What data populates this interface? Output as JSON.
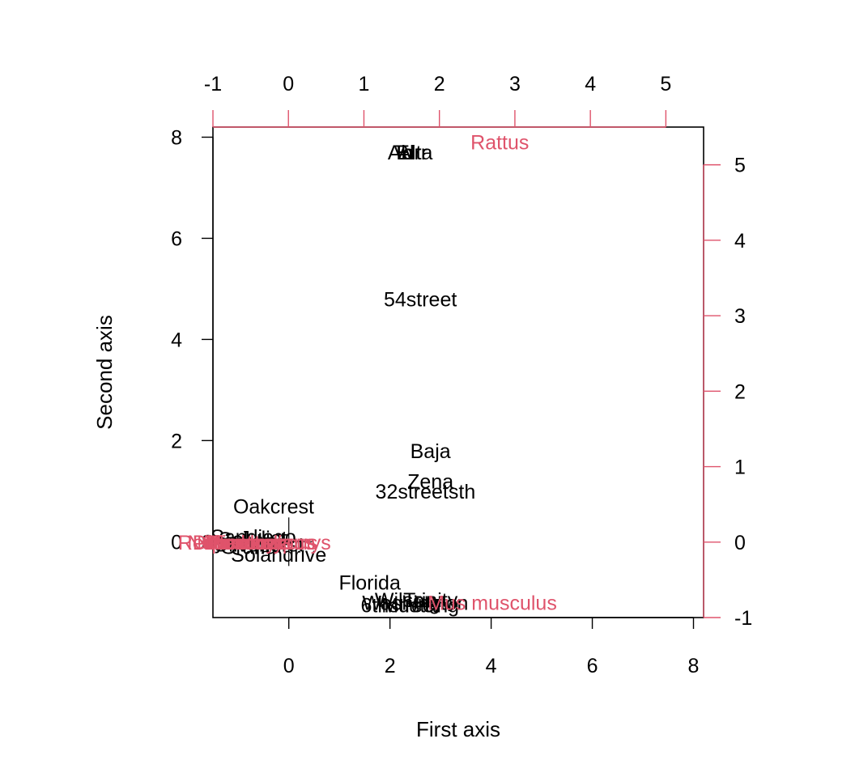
{
  "chart_data": {
    "type": "scatter",
    "subtype": "biplot",
    "title": "",
    "xlabel": "First axis",
    "ylabel": "Second axis",
    "grid": false,
    "legend": "none",
    "colors": {
      "sites": "#000000",
      "species": "#DF536B"
    },
    "sites_axes": {
      "xlim": [
        -1.5,
        8.2
      ],
      "ylim": [
        -1.5,
        8.2
      ],
      "xticks": [
        0,
        2,
        4,
        6,
        8
      ],
      "yticks": [
        0,
        2,
        4,
        6,
        8
      ]
    },
    "species_axes": {
      "xlim": [
        -1.0,
        5.5
      ],
      "ylim": [
        -1.0,
        5.5
      ],
      "xticks": [
        -1,
        0,
        1,
        2,
        3,
        4,
        5
      ],
      "yticks": [
        -1,
        0,
        1,
        2,
        3,
        4,
        5
      ]
    },
    "site_points": [
      {
        "label": "Ab",
        "x": 2.2,
        "y": 7.7
      },
      {
        "label": "El",
        "x": 2.3,
        "y": 7.7
      },
      {
        "label": "Alta",
        "x": 2.5,
        "y": 7.7
      },
      {
        "label": "Torr",
        "x": 2.4,
        "y": 7.7
      },
      {
        "label": "54street",
        "x": 2.6,
        "y": 4.8
      },
      {
        "label": "Baja",
        "x": 2.8,
        "y": 1.8
      },
      {
        "label": "Zena",
        "x": 2.8,
        "y": 1.2
      },
      {
        "label": "32streetsth",
        "x": 2.7,
        "y": 1.0
      },
      {
        "label": "Oakcrest",
        "x": -0.3,
        "y": 0.7
      },
      {
        "label": "Florida",
        "x": 1.6,
        "y": -0.8
      },
      {
        "label": "Wilson",
        "x": 2.3,
        "y": -1.15
      },
      {
        "label": "Washington",
        "x": 2.5,
        "y": -1.2
      },
      {
        "label": "Trinity",
        "x": 2.8,
        "y": -1.15
      },
      {
        "label": "6thstreet",
        "x": 2.2,
        "y": -1.25
      },
      {
        "label": "Mustang",
        "x": 2.6,
        "y": -1.25
      },
      {
        "label": "Sandiego",
        "x": -0.7,
        "y": 0.1
      },
      {
        "label": "Syracuse",
        "x": -0.9,
        "y": 0.0
      },
      {
        "label": "Olivehurst",
        "x": -0.6,
        "y": -0.05
      },
      {
        "label": "Grand",
        "x": -0.8,
        "y": -0.1
      },
      {
        "label": "Sol",
        "x": -1.1,
        "y": 0.05
      },
      {
        "label": "Solandrive",
        "x": -0.2,
        "y": -0.25
      },
      {
        "label": "Laurel",
        "x": -0.7,
        "y": 0.02
      },
      {
        "label": "Juliet",
        "x": -0.5,
        "y": 0.08
      }
    ],
    "species_points": [
      {
        "label": "Rattus",
        "x": 2.8,
        "y": 5.3
      },
      {
        "label": "Mus musculus",
        "x": 2.7,
        "y": -0.8
      },
      {
        "label": "Neotoma",
        "x": -0.5,
        "y": 0.0
      },
      {
        "label": "Peromyscus",
        "x": -0.35,
        "y": 0.0
      },
      {
        "label": "Microtus",
        "x": -0.6,
        "y": 0.0
      },
      {
        "label": "Reithrodontomys",
        "x": -0.45,
        "y": 0.0
      },
      {
        "label": "Chaetodipus",
        "x": -0.4,
        "y": 0.0
      },
      {
        "label": "Dipodomys",
        "x": -0.6,
        "y": 0.0
      },
      {
        "label": "Notiosorex",
        "x": -0.7,
        "y": 0.0
      }
    ]
  }
}
